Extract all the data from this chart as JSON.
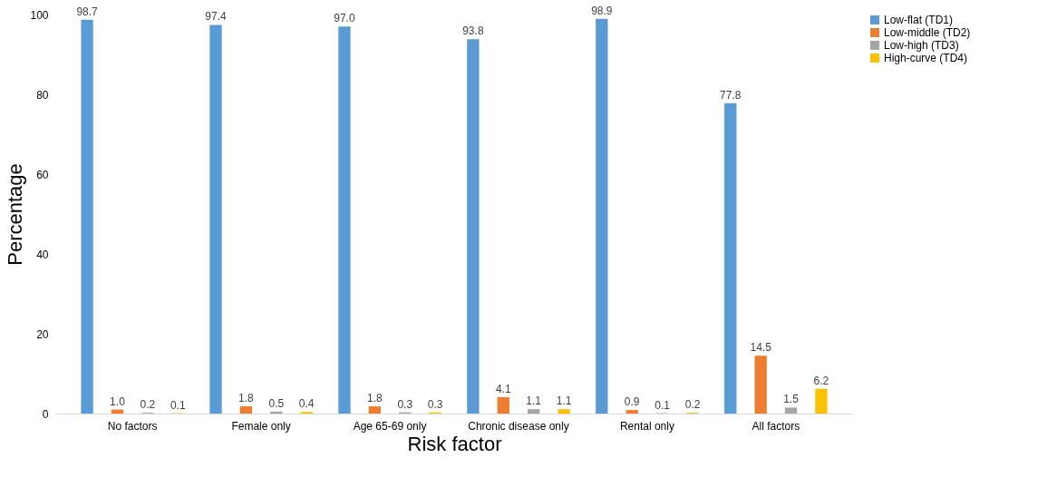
{
  "chart_data": {
    "type": "bar",
    "xlabel": "Risk factor",
    "ylabel": "Percentage",
    "categories": [
      "No factors",
      "Female only",
      "Age 65-69 only",
      "Chronic disease only",
      "Rental only",
      "All factors"
    ],
    "series": [
      {
        "name": "Low-flat (TD1)",
        "color": "#5b9bd5",
        "values": [
          98.7,
          97.4,
          97.0,
          93.8,
          98.9,
          77.8
        ],
        "value_labels": [
          "98.7",
          "97.4",
          "97.0",
          "93.8",
          "98.9",
          "77.8"
        ]
      },
      {
        "name": "Low-middle (TD2)",
        "color": "#ed7d31",
        "values": [
          1.0,
          1.8,
          1.8,
          4.1,
          0.9,
          14.5
        ],
        "value_labels": [
          "1.0",
          "1.8",
          "1.8",
          "4.1",
          "0.9",
          "14.5"
        ]
      },
      {
        "name": "Low-high (TD3)",
        "color": "#a5a5a5",
        "values": [
          0.2,
          0.5,
          0.3,
          1.1,
          0.1,
          1.5
        ],
        "value_labels": [
          "0.2",
          "0.5",
          "0.3",
          "1.1",
          "0.1",
          "1.5"
        ]
      },
      {
        "name": "High-curve (TD4)",
        "color": "#ffc000",
        "values": [
          0.1,
          0.4,
          0.3,
          1.1,
          0.2,
          6.2
        ],
        "value_labels": [
          "0.1",
          "0.4",
          "0.3",
          "1.1",
          "0.2",
          "6.2"
        ]
      }
    ],
    "ylim": [
      0,
      100
    ],
    "yticks": [
      0,
      20,
      40,
      60,
      80,
      100
    ],
    "grid": false,
    "legend": "right"
  }
}
